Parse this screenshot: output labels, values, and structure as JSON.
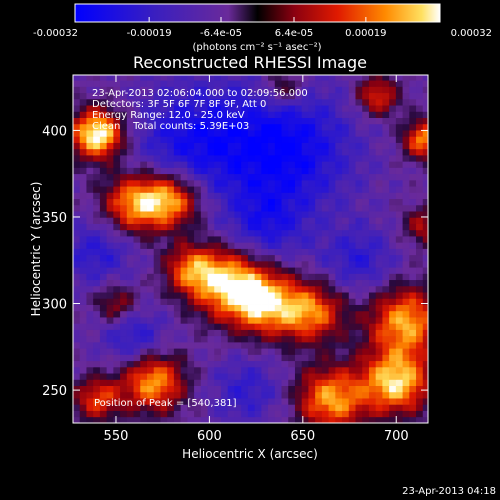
{
  "chart_data": {
    "type": "heatmap",
    "title": "Reconstructed RHESSI Image",
    "xlabel": "Heliocentric X (arcsec)",
    "ylabel": "Heliocentric Y (arcsec)",
    "xlim": [
      527,
      717
    ],
    "ylim": [
      231,
      432
    ],
    "x_ticks": [
      550,
      600,
      650,
      700
    ],
    "y_ticks": [
      250,
      300,
      350,
      400
    ],
    "colorbar": {
      "range": [
        -0.00032,
        0.00032
      ],
      "tick_values": [
        -0.00032,
        -0.00019,
        -6.4e-05,
        6.4e-05,
        0.00019,
        0.00032
      ],
      "tick_labels": [
        "-0.00032",
        "-0.00019",
        "-6.4e-05",
        "6.4e-05",
        "0.00019",
        "0.00032"
      ],
      "unit_label": "(photons cm⁻² s⁻¹ asec⁻²)"
    },
    "annotations": [
      "23-Apr-2013 02:06:04.000 to 02:09:56.000",
      "Detectors: 3F 5F 6F 7F 8F 9F, Att 0",
      "Energy Range: 12.0 - 25.0 keV",
      "Clean    Total counts: 5.39E+03"
    ],
    "peak_label": "Position of Peak = [540,381]",
    "peak_position": [
      540,
      381
    ],
    "sources": [
      {
        "x": 540,
        "y": 398,
        "intensity": 1.0,
        "size": 10
      },
      {
        "x": 560,
        "y": 358,
        "intensity": 0.75,
        "size": 12
      },
      {
        "x": 580,
        "y": 360,
        "intensity": 0.7,
        "size": 11
      },
      {
        "x": 610,
        "y": 312,
        "intensity": 0.8,
        "size": 14
      },
      {
        "x": 630,
        "y": 300,
        "intensity": 0.75,
        "size": 13
      },
      {
        "x": 655,
        "y": 295,
        "intensity": 0.65,
        "size": 12
      },
      {
        "x": 590,
        "y": 320,
        "intensity": 0.55,
        "size": 10
      },
      {
        "x": 705,
        "y": 290,
        "intensity": 0.75,
        "size": 14
      },
      {
        "x": 700,
        "y": 255,
        "intensity": 0.85,
        "size": 13
      },
      {
        "x": 665,
        "y": 245,
        "intensity": 0.75,
        "size": 13
      },
      {
        "x": 570,
        "y": 255,
        "intensity": 0.75,
        "size": 12
      },
      {
        "x": 540,
        "y": 245,
        "intensity": 0.55,
        "size": 9
      },
      {
        "x": 550,
        "y": 300,
        "intensity": 0.4,
        "size": 8
      },
      {
        "x": 715,
        "y": 395,
        "intensity": 0.7,
        "size": 8
      },
      {
        "x": 690,
        "y": 420,
        "intensity": 0.55,
        "size": 8
      },
      {
        "x": 640,
        "y": 425,
        "intensity": 0.4,
        "size": 8
      },
      {
        "x": 715,
        "y": 345,
        "intensity": 0.4,
        "size": 8
      }
    ],
    "negative_regions": [
      {
        "x": 640,
        "y": 390,
        "intensity": 0.8,
        "size": 25
      },
      {
        "x": 590,
        "y": 395,
        "intensity": 0.6,
        "size": 22
      },
      {
        "x": 630,
        "y": 345,
        "intensity": 0.5,
        "size": 15
      },
      {
        "x": 680,
        "y": 325,
        "intensity": 0.45,
        "size": 14
      },
      {
        "x": 540,
        "y": 330,
        "intensity": 0.45,
        "size": 14
      },
      {
        "x": 620,
        "y": 250,
        "intensity": 0.4,
        "size": 14
      },
      {
        "x": 560,
        "y": 280,
        "intensity": 0.5,
        "size": 12
      }
    ],
    "colors": {
      "background": "#000000",
      "axes": "#ffffff"
    }
  },
  "footer": {
    "timestamp": "23-Apr-2013 04:18"
  }
}
